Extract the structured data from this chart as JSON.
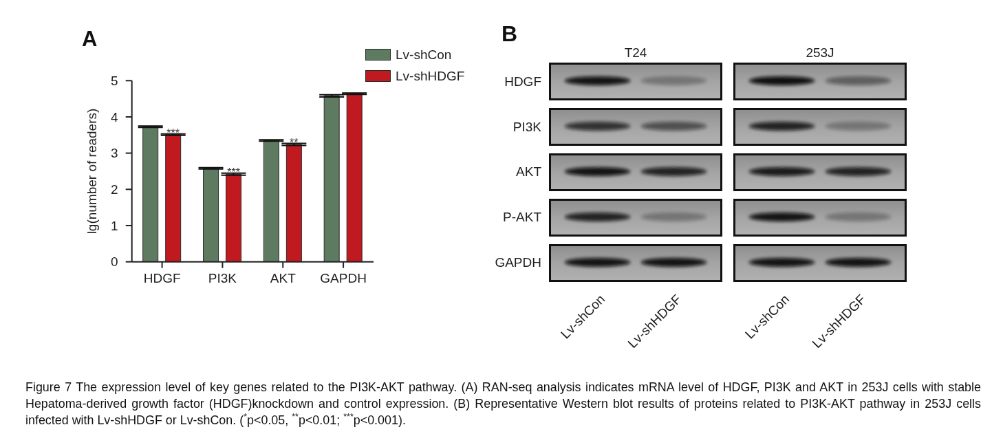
{
  "chart_data": [
    {
      "type": "bar",
      "title": "A",
      "ylabel": "lg(number of readers)",
      "categories": [
        "HDGF",
        "PI3K",
        "AKT",
        "GAPDH"
      ],
      "series": [
        {
          "name": "Lv-shCon",
          "color": "#5e7b61",
          "values": [
            3.73,
            2.58,
            3.35,
            4.58
          ],
          "errors": [
            0.02,
            0.02,
            0.02,
            0.03
          ]
        },
        {
          "name": "Lv-shHDGF",
          "color": "#c01a20",
          "values": [
            3.51,
            2.42,
            3.24,
            4.64
          ],
          "errors": [
            0.02,
            0.03,
            0.03,
            0.02
          ],
          "value_labels": [
            "***",
            "***",
            "**",
            null
          ]
        }
      ],
      "ylim": [
        0,
        5
      ],
      "yticks": [
        0,
        1,
        2,
        3,
        4,
        5
      ],
      "legend": "top right",
      "annotations": [
        "Figure 7 The expression level of key genes related to the PI3K-AKT pathway. (A) RAN-seq analysis indicates mRNA level of HDGF, PI3K and AKT in 253J cells with stable Hepatoma-derived growth factor (HDGF)knockdown and control expression. (B) Representative Western blot results of proteins related to PI3K-AKT pathway in 253J cells infected with Lv-shHDGF or Lv-shCon. ($^{*}$p<0.05, $^{**}$p<0.01; $^{***}$p<0.001)."
      ]
    },
    {
      "type": "other",
      "title": "B",
      "categories": [
        "Lv-shCon",
        "Lv-shHDGF",
        "Lv-shCon",
        "Lv-shHDGF"
      ],
      "y_categories": [
        "HDGF",
        "PI3K",
        "AKT",
        "P-AKT",
        "GAPDH"
      ],
      "annotations": [
        "T24",
        "253J"
      ]
    }
  ]
}
